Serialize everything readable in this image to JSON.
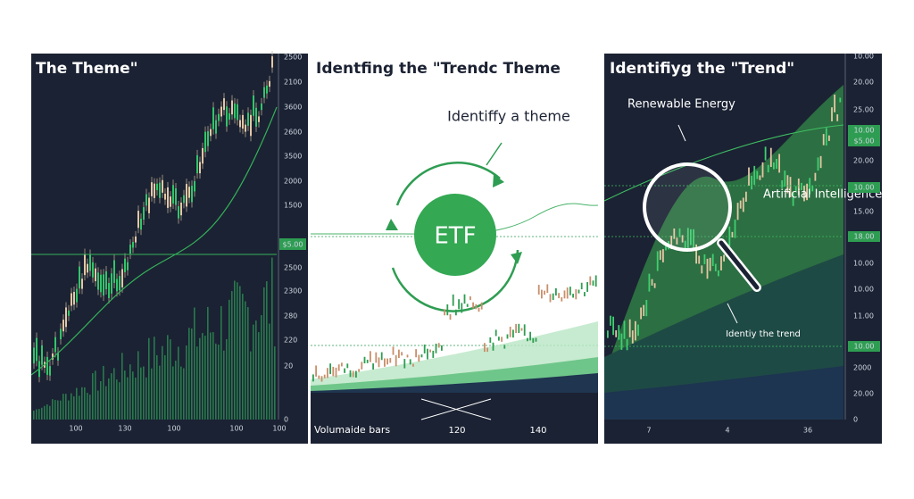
{
  "panels": [
    {
      "title": "The Theme\"",
      "y_labels": [
        "2500",
        "2100",
        "3600",
        "2600",
        "3500",
        "2000",
        "1500",
        "2500",
        "2300",
        "280",
        "220",
        "20",
        "0"
      ],
      "badge": "$5.00",
      "x_labels": [
        "100",
        "130",
        "100",
        "100",
        "100"
      ]
    },
    {
      "title": "Identfing the \"Trendc Theme",
      "callout": "Identiffy a theme",
      "center": "ETF",
      "footer": "Volumaide bars",
      "x_labels": [
        "120",
        "140"
      ]
    },
    {
      "title": "Identifiyg the \"Trend\"",
      "annotations": [
        "Renewable Energy",
        "Artificial Intelligence",
        "Identiy the trend"
      ],
      "y_labels": [
        "10.00",
        "20.00",
        "25.00",
        "20.00",
        "15.00",
        "10.00",
        "10.00",
        "11.00",
        "2000",
        "20.00",
        "0"
      ],
      "badges": [
        "10.00",
        "$5.00",
        "10.00",
        "18.00",
        "10.00"
      ],
      "x_labels": [
        "7",
        "4",
        "36"
      ]
    }
  ]
}
